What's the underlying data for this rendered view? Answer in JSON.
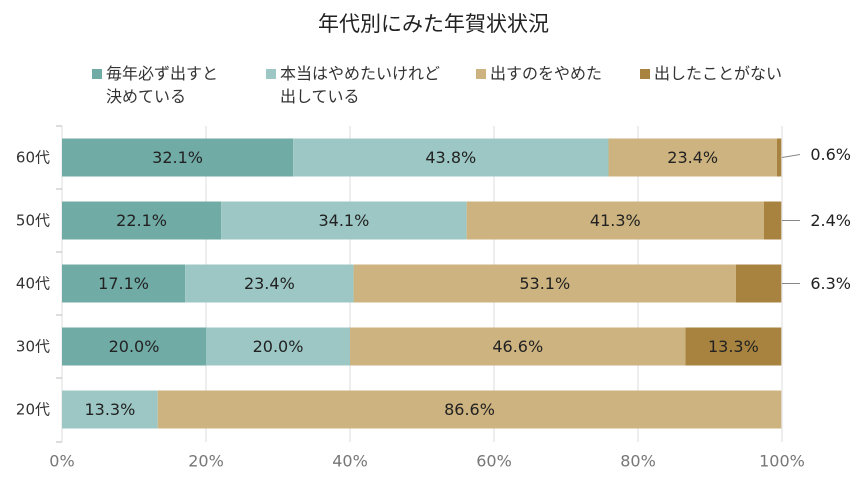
{
  "chart_data": {
    "type": "bar",
    "orientation": "horizontal",
    "stacked": true,
    "title": "年代別にみた年賀状状況",
    "categories": [
      "60代",
      "50代",
      "40代",
      "30代",
      "20代"
    ],
    "series": [
      {
        "name": "毎年必ず出すと決めている",
        "legend_lines": [
          "毎年必ず出すと",
          "決めている"
        ],
        "color": "#70aba5",
        "values": [
          32.1,
          22.1,
          17.1,
          20.0,
          0
        ]
      },
      {
        "name": "本当はやめたいけれど出している",
        "legend_lines": [
          "本当はやめたいけれど",
          "出している"
        ],
        "color": "#9cc7c4",
        "values": [
          43.8,
          34.1,
          23.4,
          20.0,
          13.3
        ]
      },
      {
        "name": "出すのをやめた",
        "legend_lines": [
          "出すのをやめた"
        ],
        "color": "#cdb37f",
        "values": [
          23.4,
          41.3,
          53.1,
          46.6,
          86.6
        ]
      },
      {
        "name": "出したことがない",
        "legend_lines": [
          "出したことがない"
        ],
        "color": "#a8833f",
        "values": [
          0.6,
          2.4,
          6.3,
          13.3,
          0
        ]
      }
    ],
    "data_labels": [
      [
        "32.1%",
        "43.8%",
        "23.4%",
        "0.6%"
      ],
      [
        "22.1%",
        "34.1%",
        "41.3%",
        "2.4%"
      ],
      [
        "17.1%",
        "23.4%",
        "53.1%",
        "6.3%"
      ],
      [
        "20.0%",
        "20.0%",
        "46.6%",
        "13.3%"
      ],
      [
        "",
        "13.3%",
        "86.6%",
        ""
      ]
    ],
    "outside_labels": [
      true,
      true,
      true,
      false,
      false
    ],
    "xlim": [
      0,
      100
    ],
    "x_ticks": [
      "0%",
      "20%",
      "40%",
      "60%",
      "80%",
      "100%"
    ],
    "grid": true,
    "legend_position": "top"
  }
}
